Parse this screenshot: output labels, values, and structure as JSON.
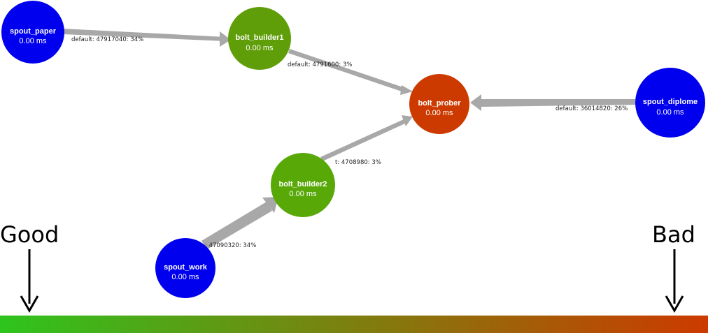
{
  "nodes": [
    {
      "id": "spout_paper",
      "label": "spout_paper",
      "latency": "0.00 ms",
      "color": "#0000ee"
    },
    {
      "id": "bolt_builder1",
      "label": "bolt_builder1",
      "latency": "0.00 ms",
      "color": "#5f9e08"
    },
    {
      "id": "bolt_prober",
      "label": "bolt_prober",
      "latency": "0.00 ms",
      "color": "#cc3a00"
    },
    {
      "id": "spout_diplome",
      "label": "spout_diplome",
      "latency": "0.00 ms",
      "color": "#0000ee"
    },
    {
      "id": "bolt_builder2",
      "label": "bolt_builder2",
      "latency": "0.00 ms",
      "color": "#58a808"
    },
    {
      "id": "spout_work",
      "label": "spout_work",
      "latency": "0.00 ms",
      "color": "#0000ee"
    }
  ],
  "edges": [
    {
      "from": "spout_paper",
      "to": "bolt_builder1",
      "label": "default: 47917040: 34%"
    },
    {
      "from": "bolt_builder1",
      "to": "bolt_prober",
      "label": "default: 4791600: 3%"
    },
    {
      "from": "spout_diplome",
      "to": "bolt_prober",
      "label": "default: 36014820: 26%"
    },
    {
      "from": "bolt_builder2",
      "to": "bolt_prober",
      "label": "t: 4708980: 3%"
    },
    {
      "from": "spout_work",
      "to": "bolt_builder2",
      "label": ": 47090320: 34%"
    }
  ],
  "legend": {
    "good_label": "Good",
    "bad_label": "Bad",
    "good_color": "#2ec41d",
    "bad_color": "#cc3a00"
  },
  "colors": {
    "edge": "#a8a8a8"
  }
}
